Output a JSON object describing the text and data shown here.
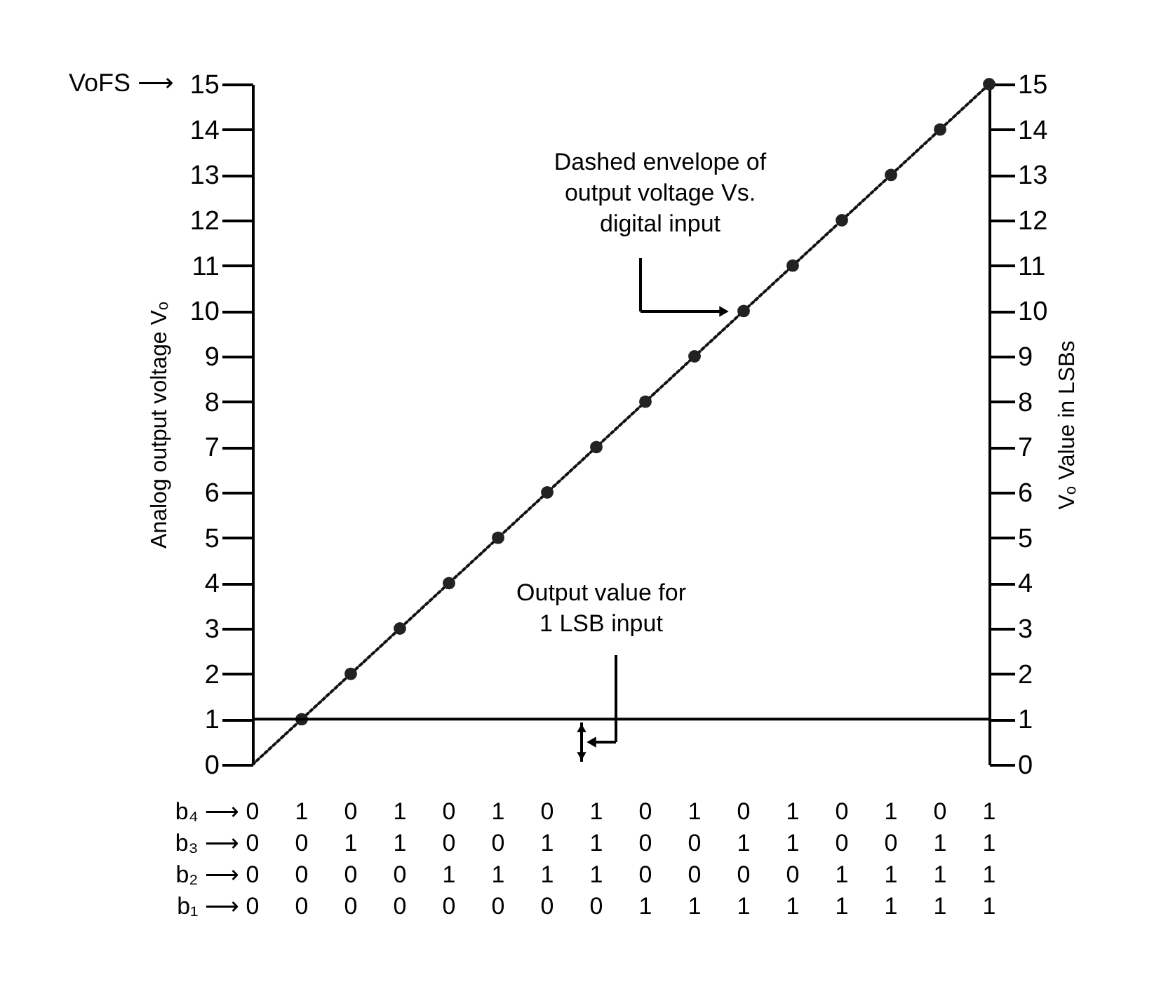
{
  "chart_data": {
    "type": "line",
    "categories": [
      null,
      null,
      null,
      null,
      null,
      null,
      null,
      null,
      null,
      null,
      null,
      null,
      null,
      null,
      null,
      null
    ],
    "ylim": [
      0,
      15
    ],
    "yticks": [
      0,
      1,
      2,
      3,
      4,
      5,
      6,
      7,
      8,
      9,
      10,
      11,
      12,
      13,
      14,
      15
    ],
    "y2lim": [
      0,
      15
    ],
    "y2ticks": [
      0,
      1,
      2,
      3,
      4,
      5,
      6,
      7,
      8,
      9,
      10,
      11,
      12,
      13,
      14,
      15
    ],
    "ylabel": "Analog output voltage Vₒ",
    "y2label": "Vₒ Value in LSBs",
    "tick_labels": "y",
    "series": [
      {
        "color": "#111111",
        "line_style": "dotted",
        "marker": "none",
        "values": [
          0,
          1,
          2,
          3,
          4,
          5,
          6,
          7,
          8,
          9,
          10,
          11,
          12,
          13,
          14,
          15
        ]
      },
      {
        "type": "scatter",
        "axis": "y2",
        "color": "#222222",
        "marker": "circle",
        "values": [
          null,
          1,
          2,
          3,
          4,
          5,
          6,
          7,
          8,
          9,
          10,
          11,
          12,
          13,
          14,
          15
        ]
      }
    ],
    "ref_lines": [
      {
        "axis": "y",
        "value": 1,
        "label": null,
        "color": "#000000",
        "line_style": "solid"
      }
    ],
    "annotations": [
      "Dashed envelope of\noutput voltage Vs.\ndigital input",
      "Output value for\n1 LSB input",
      "VoFS ⟶",
      "b₄ ⟶ 0 1 0 1 0 1 0 1 0 1 0 1 0 1 0 1",
      "b₃ ⟶ 0 0 1 1 0 0 1 1 0 0 1 1 0 0 1 1",
      "b₂ ⟶ 0 0 0 0 1 1 1 1 0 0 0 0 1 1 1 1",
      "b₁ ⟶ 0 0 0 0 0 0 0 0 1 1 1 1 1 1 1 1"
    ]
  }
}
